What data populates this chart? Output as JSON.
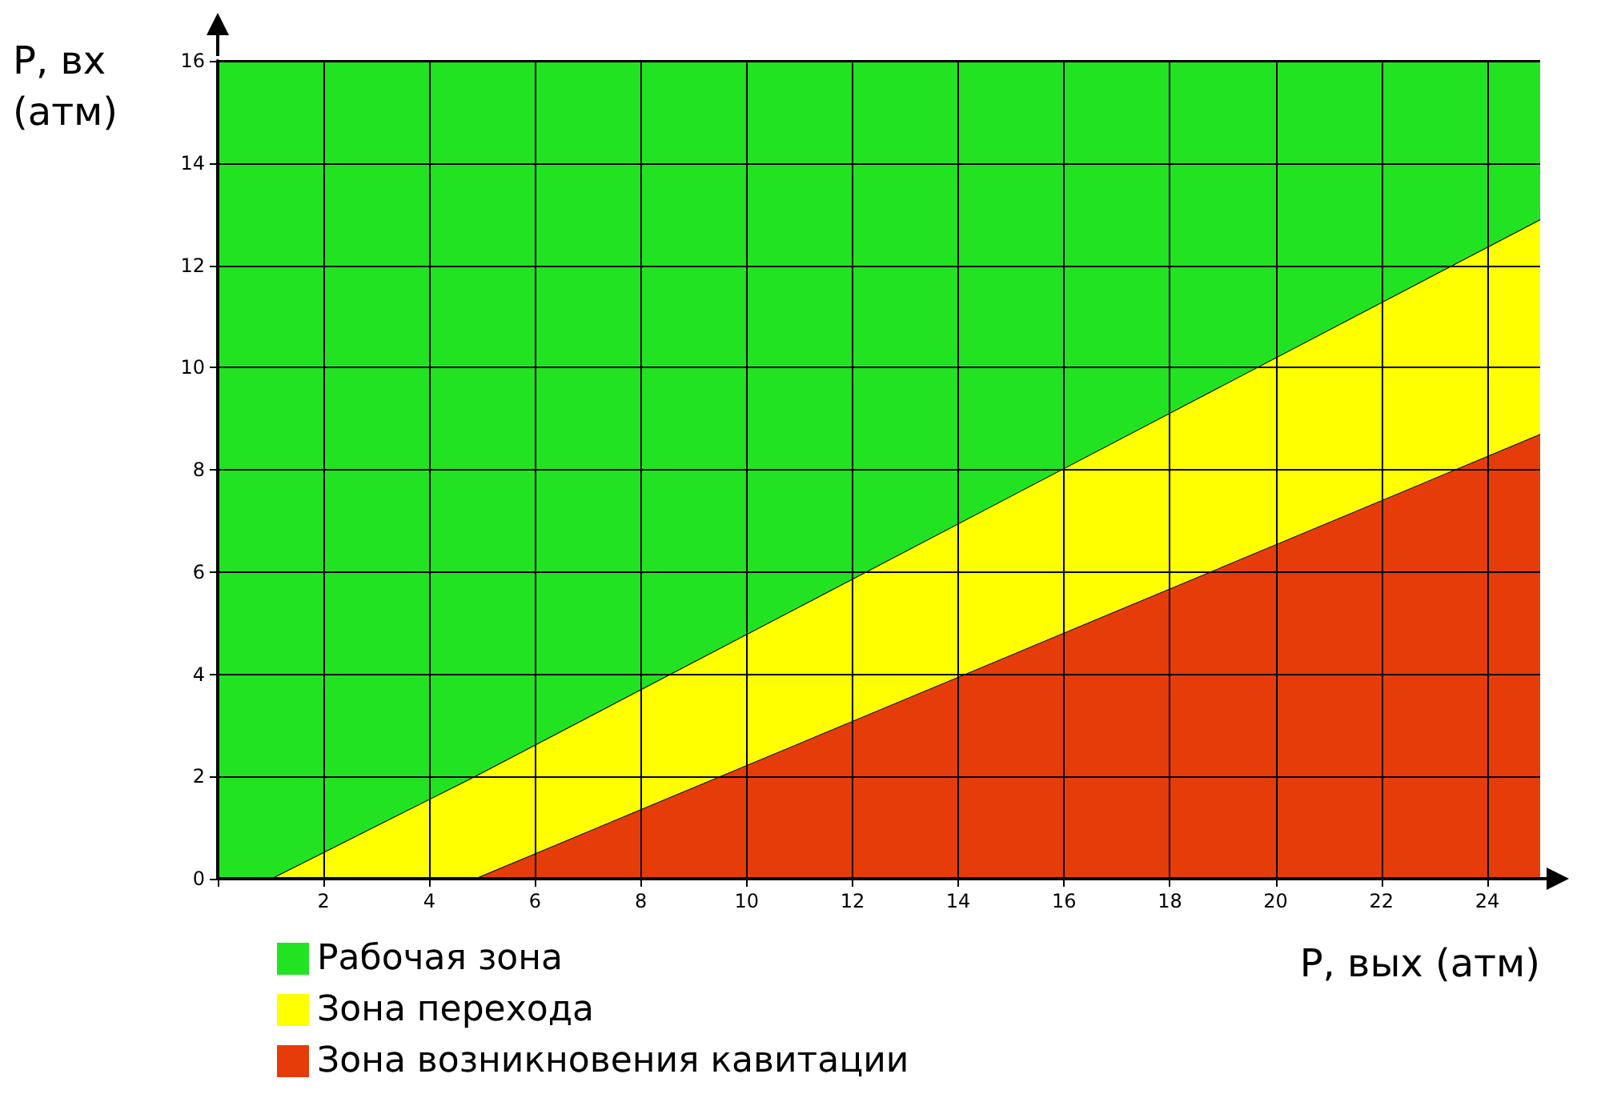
{
  "chart_data": {
    "type": "area",
    "stacked": true,
    "xlabel": "P, вых (атм)",
    "ylabel": "P, вх\n(атм)",
    "x": [
      0,
      1,
      4.85,
      25
    ],
    "series": [
      {
        "name": "Зона возникновения кавитации",
        "color": "#e63c0a",
        "values": [
          0,
          0,
          0,
          8.7
        ]
      },
      {
        "name": "Зона перехода",
        "color": "#ffff00",
        "values": [
          0,
          0,
          2.0,
          4.2
        ]
      },
      {
        "name": "Рабочая зона",
        "color": "#22e322",
        "values": [
          16,
          16,
          14.0,
          3.1
        ]
      }
    ],
    "xlim": [
      0,
      25
    ],
    "xticks": [
      {
        "value": 0,
        "label": null
      },
      2,
      4,
      6,
      8,
      10,
      12,
      14,
      16,
      18,
      20,
      22,
      24
    ],
    "ylim": [
      0,
      16
    ],
    "yticks": [
      0,
      2,
      4,
      6,
      8,
      10,
      12,
      14,
      16
    ],
    "grid": true,
    "legend": "bottom left"
  }
}
